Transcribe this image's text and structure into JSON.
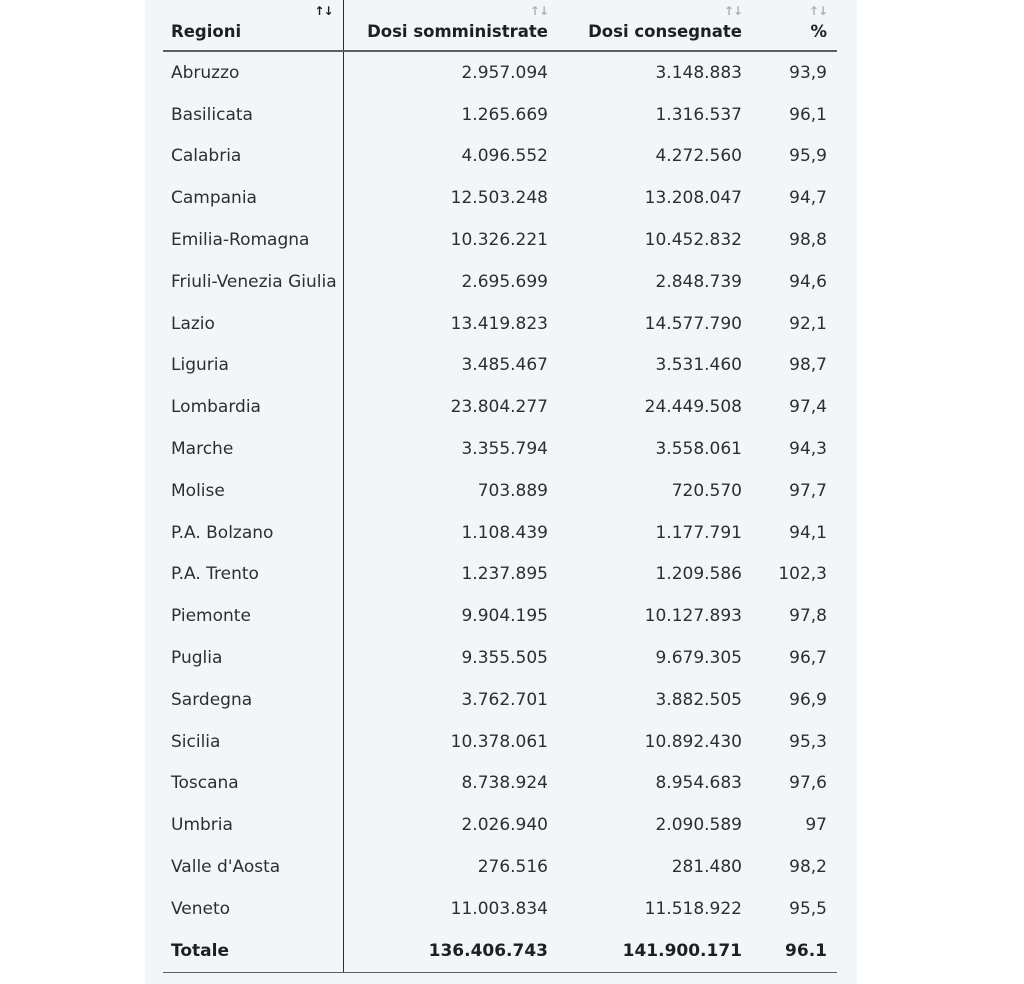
{
  "table": {
    "headers": [
      "Regioni",
      "Dosi somministrate",
      "Dosi consegnate",
      "%"
    ],
    "sort_icon": "↑↓",
    "rows": [
      [
        "Abruzzo",
        "2.957.094",
        "3.148.883",
        "93,9"
      ],
      [
        "Basilicata",
        "1.265.669",
        "1.316.537",
        "96,1"
      ],
      [
        "Calabria",
        "4.096.552",
        "4.272.560",
        "95,9"
      ],
      [
        "Campania",
        "12.503.248",
        "13.208.047",
        "94,7"
      ],
      [
        "Emilia-Romagna",
        "10.326.221",
        "10.452.832",
        "98,8"
      ],
      [
        "Friuli-Venezia Giulia",
        "2.695.699",
        "2.848.739",
        "94,6"
      ],
      [
        "Lazio",
        "13.419.823",
        "14.577.790",
        "92,1"
      ],
      [
        "Liguria",
        "3.485.467",
        "3.531.460",
        "98,7"
      ],
      [
        "Lombardia",
        "23.804.277",
        "24.449.508",
        "97,4"
      ],
      [
        "Marche",
        "3.355.794",
        "3.558.061",
        "94,3"
      ],
      [
        "Molise",
        "703.889",
        "720.570",
        "97,7"
      ],
      [
        "P.A. Bolzano",
        "1.108.439",
        "1.177.791",
        "94,1"
      ],
      [
        "P.A. Trento",
        "1.237.895",
        "1.209.586",
        "102,3"
      ],
      [
        "Piemonte",
        "9.904.195",
        "10.127.893",
        "97,8"
      ],
      [
        "Puglia",
        "9.355.505",
        "9.679.305",
        "96,7"
      ],
      [
        "Sardegna",
        "3.762.701",
        "3.882.505",
        "96,9"
      ],
      [
        "Sicilia",
        "10.378.061",
        "10.892.430",
        "95,3"
      ],
      [
        "Toscana",
        "8.738.924",
        "8.954.683",
        "97,6"
      ],
      [
        "Umbria",
        "2.026.940",
        "2.090.589",
        "97"
      ],
      [
        "Valle d'Aosta",
        "276.516",
        "281.480",
        "98,2"
      ],
      [
        "Veneto",
        "11.003.834",
        "11.518.922",
        "95,5"
      ]
    ],
    "total": [
      "Totale",
      "136.406.743",
      "141.900.171",
      "96.1"
    ]
  }
}
